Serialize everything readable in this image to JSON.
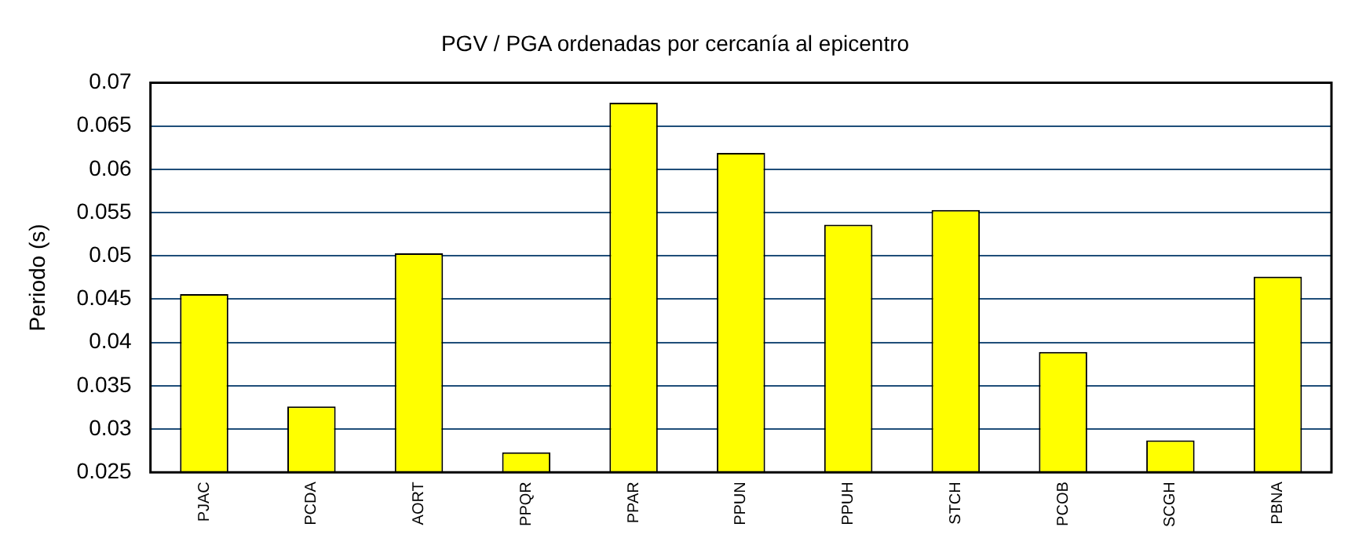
{
  "chart_data": {
    "type": "bar",
    "title": "PGV / PGA ordenadas por cercanía al epicentro",
    "ylabel": "Periodo (s)",
    "categories": [
      "PJAC",
      "PCDA",
      "AORT",
      "PPQR",
      "PPAR",
      "PPUN",
      "PPUH",
      "STCH",
      "PCOB",
      "SCGH",
      "PBNA"
    ],
    "values": [
      0.0456,
      0.0326,
      0.0503,
      0.0273,
      0.0677,
      0.0619,
      0.0536,
      0.0553,
      0.0389,
      0.0287,
      0.0476
    ],
    "color": "#ffff00",
    "ylim": [
      0.025,
      0.07
    ],
    "yticks": [
      0.025,
      0.03,
      0.035,
      0.04,
      0.045,
      0.05,
      0.055,
      0.06,
      0.065,
      0.07
    ],
    "grid": "y",
    "legend": false
  }
}
